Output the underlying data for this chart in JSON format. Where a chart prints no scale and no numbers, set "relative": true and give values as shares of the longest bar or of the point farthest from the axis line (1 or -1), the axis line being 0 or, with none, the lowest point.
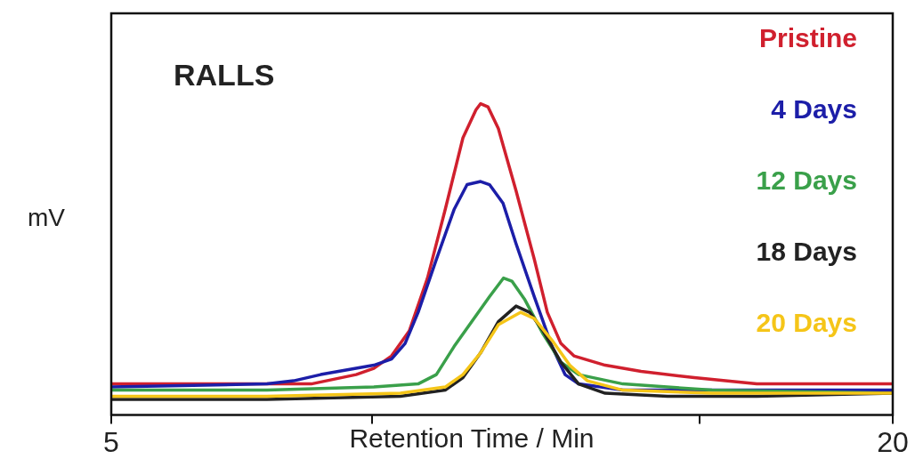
{
  "chart_data": {
    "type": "line",
    "title": "RALLS",
    "xlabel": "Retention Time / Min",
    "ylabel": "mV",
    "relative": true,
    "xlim": [
      5,
      20
    ],
    "xticks": [
      5,
      {
        "value": 10,
        "label": null
      },
      {
        "value": 16.3,
        "label": null
      },
      20
    ],
    "grid": false,
    "legend": "top right",
    "marker": "none",
    "line_style": "solid",
    "series": [
      {
        "name": "Pristine",
        "color": "#d0202e",
        "x": [
          5,
          6.28,
          7.99,
          8.84,
          9.7,
          10.04,
          10.38,
          10.72,
          11.07,
          11.41,
          11.75,
          12,
          12.09,
          12.23,
          12.43,
          12.77,
          13.12,
          13.37,
          13.63,
          13.88,
          14.48,
          15.17,
          16.19,
          17.39,
          20
        ],
        "values": [
          0.1,
          0.1,
          0.1,
          0.1,
          0.13,
          0.15,
          0.19,
          0.27,
          0.44,
          0.66,
          0.89,
          0.98,
          1,
          0.99,
          0.92,
          0.72,
          0.5,
          0.33,
          0.23,
          0.19,
          0.16,
          0.14,
          0.12,
          0.1,
          0.1
        ]
      },
      {
        "name": "4 Days",
        "color": "#1c1ea8",
        "x": [
          5,
          7.99,
          8.5,
          9.02,
          9.7,
          10.04,
          10.38,
          10.64,
          10.89,
          11.24,
          11.58,
          11.83,
          12.09,
          12.26,
          12.52,
          12.77,
          13.12,
          13.46,
          13.71,
          13.97,
          14.82,
          16.53,
          20
        ],
        "values": [
          0.09,
          0.1,
          0.11,
          0.13,
          0.15,
          0.16,
          0.18,
          0.23,
          0.33,
          0.5,
          0.66,
          0.74,
          0.75,
          0.74,
          0.68,
          0.55,
          0.38,
          0.22,
          0.13,
          0.1,
          0.08,
          0.08,
          0.08
        ]
      },
      {
        "name": "12 Days",
        "color": "#3aa04a",
        "x": [
          5,
          7.99,
          10.04,
          10.89,
          11.24,
          11.58,
          11.92,
          12.26,
          12.53,
          12.69,
          12.94,
          13.29,
          13.63,
          13.97,
          14.82,
          16.53,
          20
        ],
        "values": [
          0.08,
          0.08,
          0.09,
          0.1,
          0.13,
          0.22,
          0.3,
          0.38,
          0.44,
          0.43,
          0.37,
          0.26,
          0.17,
          0.13,
          0.1,
          0.08,
          0.07
        ]
      },
      {
        "name": "18 Days",
        "color": "#222222",
        "x": [
          5,
          7.99,
          10.55,
          11.41,
          11.75,
          12.09,
          12.43,
          12.77,
          13.03,
          13.29,
          13.63,
          13.97,
          14.48,
          15.68,
          17.39,
          20
        ],
        "values": [
          0.05,
          0.05,
          0.06,
          0.08,
          0.12,
          0.2,
          0.3,
          0.35,
          0.33,
          0.27,
          0.17,
          0.1,
          0.07,
          0.06,
          0.06,
          0.07
        ]
      },
      {
        "name": "20 Days",
        "color": "#f5c518",
        "x": [
          5,
          7.99,
          10.55,
          11.41,
          11.75,
          12.09,
          12.43,
          12.86,
          13.12,
          13.46,
          13.8,
          14.14,
          14.82,
          16.53,
          20
        ],
        "values": [
          0.06,
          0.06,
          0.07,
          0.09,
          0.13,
          0.2,
          0.29,
          0.33,
          0.31,
          0.24,
          0.16,
          0.11,
          0.08,
          0.07,
          0.07
        ]
      }
    ]
  }
}
